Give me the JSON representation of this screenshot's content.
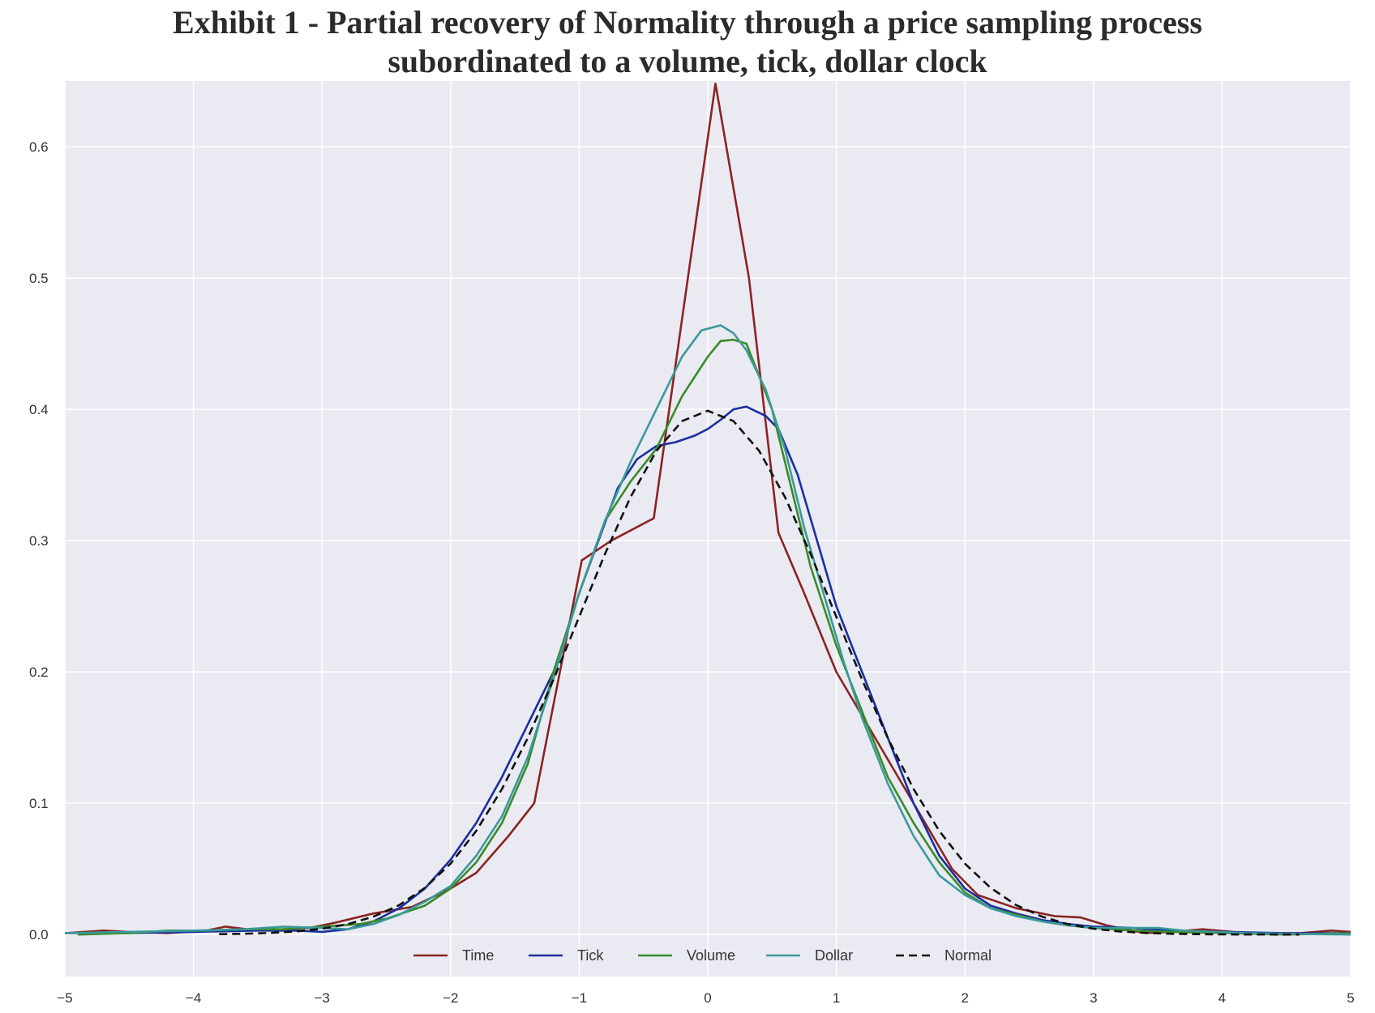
{
  "title_line1": "Exhibit 1 - Partial recovery of Normality through a price sampling process",
  "title_line2": "subordinated to a volume, tick, dollar clock",
  "chart_data": {
    "type": "line",
    "title": "Exhibit 1 - Partial recovery of Normality through a price sampling process subordinated to a volume, tick, dollar clock",
    "xlabel": "",
    "ylabel": "",
    "xlim": [
      -5,
      5
    ],
    "ylim": [
      -0.032,
      0.65
    ],
    "grid": true,
    "background": "#eaeaf2",
    "legend_position": "bottom-center",
    "x_ticks": [
      -5,
      -4,
      -3,
      -2,
      -1,
      0,
      1,
      2,
      3,
      4,
      5
    ],
    "x_tick_labels": [
      "−5",
      "−4",
      "−3",
      "−2",
      "−1",
      "0",
      "1",
      "2",
      "3",
      "4",
      "5"
    ],
    "y_ticks": [
      0.0,
      0.1,
      0.2,
      0.3,
      0.4,
      0.5,
      0.6
    ],
    "y_tick_labels": [
      "0.0",
      "0.1",
      "0.2",
      "0.3",
      "0.4",
      "0.5",
      "0.6"
    ],
    "series": [
      {
        "name": "Time",
        "color": "#8b2323",
        "dash": false,
        "points": [
          [
            -5,
            0.001
          ],
          [
            -4.7,
            0.003
          ],
          [
            -4.5,
            0.002
          ],
          [
            -4.2,
            0.001
          ],
          [
            -3.9,
            0.003
          ],
          [
            -3.75,
            0.006
          ],
          [
            -3.5,
            0.003
          ],
          [
            -3.3,
            0.004
          ],
          [
            -3.1,
            0.005
          ],
          [
            -2.9,
            0.009
          ],
          [
            -2.6,
            0.016
          ],
          [
            -2.3,
            0.021
          ],
          [
            -2.0,
            0.035
          ],
          [
            -1.8,
            0.047
          ],
          [
            -1.55,
            0.075
          ],
          [
            -1.35,
            0.1
          ],
          [
            -1.15,
            0.2
          ],
          [
            -0.98,
            0.285
          ],
          [
            -0.75,
            0.3
          ],
          [
            -0.42,
            0.317
          ],
          [
            0.06,
            0.648
          ],
          [
            0.32,
            0.5
          ],
          [
            0.55,
            0.306
          ],
          [
            0.75,
            0.26
          ],
          [
            1.0,
            0.2
          ],
          [
            1.3,
            0.15
          ],
          [
            1.6,
            0.1
          ],
          [
            1.9,
            0.05
          ],
          [
            2.1,
            0.03
          ],
          [
            2.4,
            0.02
          ],
          [
            2.7,
            0.014
          ],
          [
            2.9,
            0.013
          ],
          [
            3.1,
            0.007
          ],
          [
            3.4,
            0.001
          ],
          [
            3.6,
            0.002
          ],
          [
            3.85,
            0.004
          ],
          [
            4.2,
            0.001
          ],
          [
            4.6,
            0.001
          ],
          [
            4.85,
            0.003
          ],
          [
            5,
            0.002
          ]
        ]
      },
      {
        "name": "Tick",
        "color": "#1a2fa0",
        "dash": false,
        "points": [
          [
            -5,
            0.001
          ],
          [
            -4.5,
            0.001
          ],
          [
            -4,
            0.002
          ],
          [
            -3.5,
            0.003
          ],
          [
            -3.2,
            0.003
          ],
          [
            -3,
            0.002
          ],
          [
            -2.8,
            0.004
          ],
          [
            -2.6,
            0.01
          ],
          [
            -2.4,
            0.02
          ],
          [
            -2.2,
            0.035
          ],
          [
            -2.0,
            0.057
          ],
          [
            -1.8,
            0.085
          ],
          [
            -1.6,
            0.12
          ],
          [
            -1.4,
            0.16
          ],
          [
            -1.2,
            0.2
          ],
          [
            -1.0,
            0.26
          ],
          [
            -0.85,
            0.3
          ],
          [
            -0.7,
            0.34
          ],
          [
            -0.55,
            0.362
          ],
          [
            -0.4,
            0.372
          ],
          [
            -0.25,
            0.375
          ],
          [
            -0.1,
            0.38
          ],
          [
            0.0,
            0.385
          ],
          [
            0.1,
            0.392
          ],
          [
            0.2,
            0.4
          ],
          [
            0.3,
            0.402
          ],
          [
            0.45,
            0.395
          ],
          [
            0.55,
            0.385
          ],
          [
            0.7,
            0.35
          ],
          [
            0.85,
            0.3
          ],
          [
            1.0,
            0.25
          ],
          [
            1.2,
            0.2
          ],
          [
            1.4,
            0.15
          ],
          [
            1.6,
            0.1
          ],
          [
            1.8,
            0.06
          ],
          [
            2.0,
            0.035
          ],
          [
            2.2,
            0.022
          ],
          [
            2.4,
            0.016
          ],
          [
            2.6,
            0.011
          ],
          [
            2.8,
            0.008
          ],
          [
            3.0,
            0.006
          ],
          [
            3.3,
            0.005
          ],
          [
            3.6,
            0.003
          ],
          [
            4,
            0.002
          ],
          [
            4.5,
            0.001
          ],
          [
            5,
            0.001
          ]
        ]
      },
      {
        "name": "Volume",
        "color": "#3a8a2a",
        "dash": false,
        "points": [
          [
            -4.9,
            0.0
          ],
          [
            -4.5,
            0.001
          ],
          [
            -4.2,
            0.003
          ],
          [
            -3.9,
            0.003
          ],
          [
            -3.6,
            0.004
          ],
          [
            -3.3,
            0.004
          ],
          [
            -3.0,
            0.006
          ],
          [
            -2.7,
            0.008
          ],
          [
            -2.5,
            0.012
          ],
          [
            -2.2,
            0.022
          ],
          [
            -2.0,
            0.035
          ],
          [
            -1.8,
            0.055
          ],
          [
            -1.6,
            0.085
          ],
          [
            -1.4,
            0.13
          ],
          [
            -1.2,
            0.2
          ],
          [
            -1.0,
            0.26
          ],
          [
            -0.8,
            0.315
          ],
          [
            -0.6,
            0.345
          ],
          [
            -0.4,
            0.37
          ],
          [
            -0.2,
            0.41
          ],
          [
            0.0,
            0.44
          ],
          [
            0.1,
            0.452
          ],
          [
            0.2,
            0.453
          ],
          [
            0.3,
            0.45
          ],
          [
            0.5,
            0.4
          ],
          [
            0.65,
            0.34
          ],
          [
            0.8,
            0.28
          ],
          [
            1.0,
            0.22
          ],
          [
            1.2,
            0.17
          ],
          [
            1.4,
            0.12
          ],
          [
            1.6,
            0.085
          ],
          [
            1.8,
            0.055
          ],
          [
            2.0,
            0.032
          ],
          [
            2.2,
            0.02
          ],
          [
            2.4,
            0.015
          ],
          [
            2.6,
            0.01
          ],
          [
            2.8,
            0.007
          ],
          [
            3.0,
            0.005
          ],
          [
            3.3,
            0.003
          ],
          [
            3.6,
            0.002
          ],
          [
            4,
            0.001
          ],
          [
            4.5,
            0.0
          ],
          [
            5,
            0.001
          ]
        ]
      },
      {
        "name": "Dollar",
        "color": "#3a9a9a",
        "dash": false,
        "points": [
          [
            -5,
            0.001
          ],
          [
            -4.5,
            0.002
          ],
          [
            -4,
            0.003
          ],
          [
            -3.6,
            0.004
          ],
          [
            -3.3,
            0.006
          ],
          [
            -3.0,
            0.005
          ],
          [
            -2.8,
            0.004
          ],
          [
            -2.6,
            0.008
          ],
          [
            -2.4,
            0.015
          ],
          [
            -2.2,
            0.025
          ],
          [
            -2.0,
            0.037
          ],
          [
            -1.8,
            0.06
          ],
          [
            -1.6,
            0.09
          ],
          [
            -1.4,
            0.135
          ],
          [
            -1.2,
            0.195
          ],
          [
            -1.0,
            0.26
          ],
          [
            -0.8,
            0.315
          ],
          [
            -0.6,
            0.36
          ],
          [
            -0.4,
            0.4
          ],
          [
            -0.2,
            0.44
          ],
          [
            -0.05,
            0.46
          ],
          [
            0.1,
            0.464
          ],
          [
            0.2,
            0.458
          ],
          [
            0.3,
            0.445
          ],
          [
            0.45,
            0.415
          ],
          [
            0.6,
            0.37
          ],
          [
            0.75,
            0.31
          ],
          [
            0.9,
            0.26
          ],
          [
            1.05,
            0.21
          ],
          [
            1.2,
            0.165
          ],
          [
            1.4,
            0.115
          ],
          [
            1.6,
            0.075
          ],
          [
            1.8,
            0.045
          ],
          [
            2.0,
            0.03
          ],
          [
            2.2,
            0.02
          ],
          [
            2.4,
            0.014
          ],
          [
            2.6,
            0.01
          ],
          [
            2.8,
            0.007
          ],
          [
            3.0,
            0.005
          ],
          [
            3.3,
            0.005
          ],
          [
            3.5,
            0.005
          ],
          [
            3.7,
            0.003
          ],
          [
            4.2,
            0.001
          ],
          [
            5,
            0.0
          ]
        ]
      },
      {
        "name": "Normal",
        "color": "#111111",
        "dash": true,
        "points": [
          [
            -3.8,
            0.0003
          ],
          [
            -3.6,
            0.0006
          ],
          [
            -3.4,
            0.0012
          ],
          [
            -3.2,
            0.0024
          ],
          [
            -3.0,
            0.0044
          ],
          [
            -2.8,
            0.0079
          ],
          [
            -2.6,
            0.0136
          ],
          [
            -2.4,
            0.0224
          ],
          [
            -2.2,
            0.0355
          ],
          [
            -2.0,
            0.054
          ],
          [
            -1.8,
            0.079
          ],
          [
            -1.6,
            0.1109
          ],
          [
            -1.4,
            0.1497
          ],
          [
            -1.2,
            0.1942
          ],
          [
            -1.0,
            0.242
          ],
          [
            -0.8,
            0.2897
          ],
          [
            -0.6,
            0.3332
          ],
          [
            -0.4,
            0.3683
          ],
          [
            -0.2,
            0.391
          ],
          [
            0.0,
            0.3989
          ],
          [
            0.2,
            0.391
          ],
          [
            0.4,
            0.3683
          ],
          [
            0.6,
            0.3332
          ],
          [
            0.8,
            0.2897
          ],
          [
            1.0,
            0.242
          ],
          [
            1.2,
            0.1942
          ],
          [
            1.4,
            0.1497
          ],
          [
            1.6,
            0.1109
          ],
          [
            1.8,
            0.079
          ],
          [
            2.0,
            0.054
          ],
          [
            2.2,
            0.0355
          ],
          [
            2.4,
            0.0224
          ],
          [
            2.6,
            0.0136
          ],
          [
            2.8,
            0.0079
          ],
          [
            3.0,
            0.0044
          ],
          [
            3.2,
            0.0024
          ],
          [
            3.4,
            0.0012
          ],
          [
            3.6,
            0.0006
          ],
          [
            3.8,
            0.0003
          ],
          [
            4.0,
            0.0001
          ],
          [
            4.6,
            0.0
          ]
        ]
      }
    ]
  }
}
